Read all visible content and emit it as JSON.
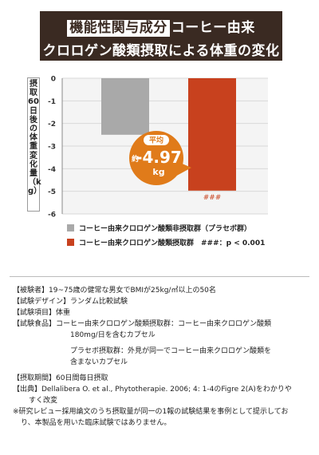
{
  "header": {
    "tag": "機能性関与成分",
    "line1_rest": "コーヒー由来",
    "line2": "クロロゲン酸類摂取による体重の変化"
  },
  "chart_data": {
    "type": "bar",
    "ylabel": "摂取60日後の体重変化量（kg）",
    "ylim": [
      -6,
      0
    ],
    "yticks": [
      0,
      -1,
      -2,
      -3,
      -4,
      -5,
      -6
    ],
    "grid": true,
    "series": [
      {
        "name": "コーヒー由来クロロゲン酸類非摂取群（プラセボ群）",
        "color": "#a9a9a9",
        "value": -2.5
      },
      {
        "name": "コーヒー由来クロロゲン酸類摂取群　###：p < 0.001",
        "color": "#c8411e",
        "value": -4.97,
        "annotation": "###"
      }
    ],
    "callout": {
      "label": "平均",
      "prefix": "約",
      "value": "-4.97",
      "unit": "kg",
      "color": "#e07b1a"
    }
  },
  "details": [
    "【被験者】19~75歳の健常な男女でBMIが25kg/㎡以上の50名",
    "【試験デザイン】ランダム比較試験",
    "【試験項目】体重",
    "【試験食品】コーヒー由来クロロゲン酸類摂取群：コーヒー由来クロロゲン酸類",
    "180mg/日を含むカプセル",
    "プラセボ摂取群：外見が同一でコーヒー由来クロロゲン酸類を",
    "含まないカプセル",
    "【摂取期間】60日間毎日摂取",
    "【出典】Dellalibera O. et al., Phytotherapie. 2006; 4: 1-4のFigre 2(A)をわかりや",
    "すく改変",
    "※研究レビュー採用論文のうち摂取量が同一の1報の試験結果を事例として提示してお",
    "り、本製品を用いた臨床試験ではありません。"
  ]
}
